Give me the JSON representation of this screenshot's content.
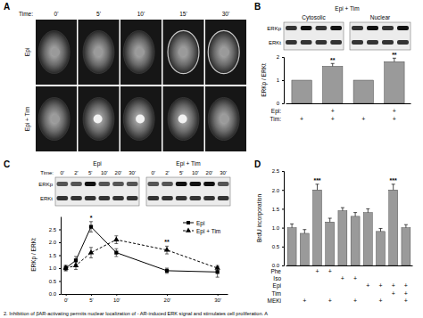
{
  "panel_a": {
    "label": "A",
    "time_label": "Time:",
    "times": [
      "0'",
      "5'",
      "10'",
      "15'",
      "30'"
    ],
    "rows": [
      "Epi",
      "Epi + Tim"
    ]
  },
  "figure": {
    "caption": "2. Inhibition of βAR-activating permits nuclear localization of - AR-induced ERK signal and stimulates cell proliferation. A"
  },
  "chart_data": [
    {
      "type": "bar",
      "panel": "B",
      "header": "Epi + Tim",
      "blot_columns": [
        "Cytosolic",
        "Nuclear"
      ],
      "blot_rows": [
        "ERKp",
        "ERKt"
      ],
      "y_label": "ERKp / ERKt",
      "values": [
        1,
        1.6,
        1,
        1.8
      ],
      "errors": [
        null,
        0.12,
        null,
        0.15
      ],
      "significance": [
        null,
        "**",
        null,
        "**"
      ],
      "conditions": [
        {
          "name": "Epi:",
          "values": [
            null,
            "+",
            null,
            "+"
          ]
        },
        {
          "name": "Tim:",
          "values": [
            "+",
            "+",
            "+",
            "+"
          ]
        }
      ],
      "ylim": [
        0,
        2
      ],
      "yticks": [
        0,
        1,
        2
      ],
      "color": "#9a9a9a"
    },
    {
      "type": "line",
      "panel": "C",
      "blot_groups": [
        "Epi",
        "Epi + Tim"
      ],
      "blot_times": [
        "0'",
        "2'",
        "5'",
        "10'",
        "20'",
        "30'"
      ],
      "time_label": "Time:",
      "blot_rows": [
        "ERKp",
        "ERKt"
      ],
      "y_label": "ERKp / ERKt",
      "x": [
        0,
        2,
        5,
        10,
        20,
        30
      ],
      "series": [
        {
          "name": "Epi",
          "color": "#000000",
          "marker": "square",
          "line_style": "solid",
          "values": [
            1,
            1.3,
            2.6,
            1.6,
            0.9,
            0.85
          ],
          "errors": [
            0.1,
            0.15,
            0.2,
            0.15,
            0.1,
            0.2
          ],
          "significance": [
            null,
            null,
            "*",
            null,
            null,
            null
          ]
        },
        {
          "name": "Epi + Tim",
          "color": "#000000",
          "marker": "triangle",
          "line_style": "dashed",
          "values": [
            1,
            1.1,
            1.6,
            2.1,
            1.7,
            1.0
          ],
          "errors": [
            0.1,
            0.15,
            0.2,
            0.15,
            0.15,
            0.1
          ],
          "significance": [
            null,
            null,
            null,
            null,
            "**",
            null
          ]
        }
      ],
      "xlim": [
        -1,
        32
      ],
      "xticks": [
        {
          "value": 0,
          "label": "0'"
        },
        {
          "value": 5,
          "label": "5'"
        },
        {
          "value": 10,
          "label": "10'"
        },
        {
          "value": 20,
          "label": "20'"
        },
        {
          "value": 30,
          "label": "30'"
        }
      ],
      "ylim": [
        0,
        3
      ],
      "yticks": [
        {
          "value": 0,
          "label": "0.0"
        },
        {
          "value": 0.5,
          "label": "0.5"
        },
        {
          "value": 1,
          "label": "1.0"
        },
        {
          "value": 1.5,
          "label": "1.5"
        },
        {
          "value": 2,
          "label": "2.0"
        },
        {
          "value": 2.5,
          "label": "2.5"
        }
      ],
      "legend": "top-right"
    },
    {
      "type": "bar",
      "panel": "D",
      "y_label": "BrdU incorporation",
      "values": [
        1,
        0.85,
        2.0,
        1.15,
        1.45,
        1.3,
        1.4,
        0.9,
        2.0,
        1.0
      ],
      "errors": [
        0.1,
        0.1,
        0.15,
        0.1,
        0.08,
        0.1,
        0.1,
        0.08,
        0.15,
        0.08
      ],
      "significance": [
        null,
        null,
        "***",
        null,
        null,
        null,
        null,
        null,
        "***",
        null
      ],
      "conditions": [
        {
          "name": "Phe",
          "values": [
            null,
            null,
            "+",
            "+",
            null,
            null,
            null,
            null,
            null,
            null
          ]
        },
        {
          "name": "Iso",
          "values": [
            null,
            null,
            null,
            null,
            "+",
            "+",
            null,
            null,
            null,
            null
          ]
        },
        {
          "name": "Epi",
          "values": [
            null,
            null,
            null,
            null,
            null,
            null,
            "+",
            "+",
            "+",
            "+"
          ]
        },
        {
          "name": "Tim",
          "values": [
            null,
            null,
            null,
            null,
            null,
            null,
            null,
            null,
            "+",
            "+"
          ]
        },
        {
          "name": "MEKi",
          "values": [
            null,
            "+",
            null,
            "+",
            null,
            "+",
            null,
            "+",
            null,
            "+"
          ]
        }
      ],
      "ylim": [
        0,
        2.5
      ],
      "yticks": [
        {
          "value": 0,
          "label": "0.0"
        },
        {
          "value": 0.5,
          "label": "0.5"
        },
        {
          "value": 1,
          "label": "1.0"
        },
        {
          "value": 1.5,
          "label": "1.5"
        },
        {
          "value": 2,
          "label": "2.0"
        },
        {
          "value": 2.5,
          "label": "2.5"
        }
      ],
      "color": "#9a9a9a"
    }
  ]
}
